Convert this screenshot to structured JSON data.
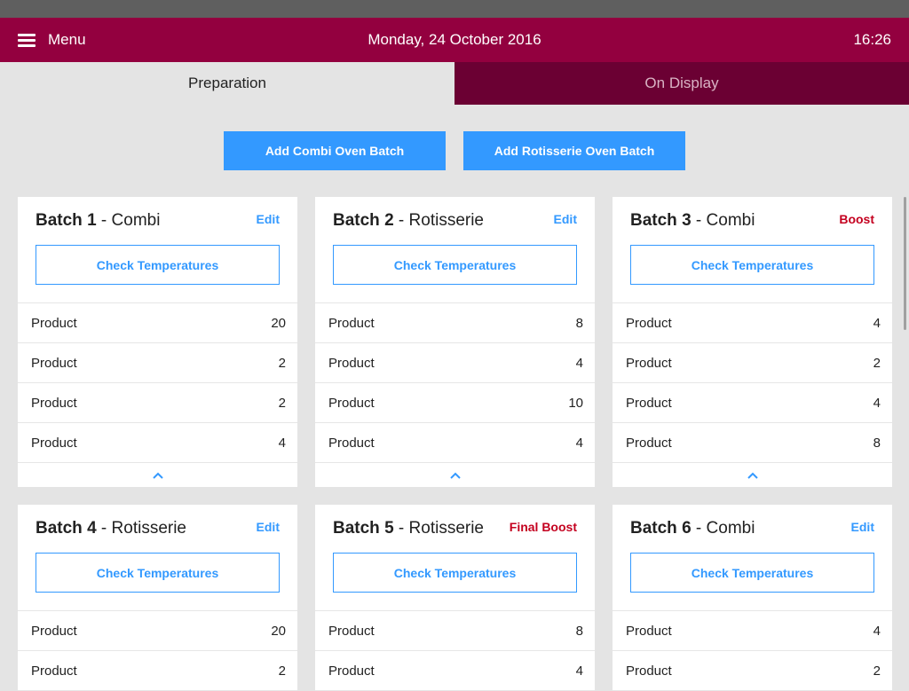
{
  "header": {
    "menu_label": "Menu",
    "date": "Monday, 24 October 2016",
    "time": "16:26"
  },
  "tabs": [
    {
      "label": "Preparation",
      "active": true
    },
    {
      "label": "On Display",
      "active": false
    }
  ],
  "actions": {
    "add_combi": "Add Combi Oven Batch",
    "add_rotisserie": "Add Rotisserie Oven Batch"
  },
  "colors": {
    "header": "#93003f",
    "tab_inactive": "#6b0033",
    "accent": "#3399ff",
    "boost": "#c4001f"
  },
  "check_label": "Check Temperatures",
  "batches": [
    {
      "name": "Batch 1",
      "separator": " - ",
      "oven": "Combi",
      "action": "Edit",
      "action_type": "edit",
      "products": [
        {
          "name": "Product",
          "qty": "20"
        },
        {
          "name": "Product",
          "qty": "2"
        },
        {
          "name": "Product",
          "qty": "2"
        },
        {
          "name": "Product",
          "qty": "4"
        }
      ]
    },
    {
      "name": "Batch 2",
      "separator": " - ",
      "oven": "Rotisserie",
      "action": "Edit",
      "action_type": "edit",
      "products": [
        {
          "name": "Product",
          "qty": "8"
        },
        {
          "name": "Product",
          "qty": "4"
        },
        {
          "name": "Product",
          "qty": "10"
        },
        {
          "name": "Product",
          "qty": "4"
        }
      ]
    },
    {
      "name": "Batch 3",
      "separator": " - ",
      "oven": "Combi",
      "action": "Boost",
      "action_type": "boost",
      "products": [
        {
          "name": "Product",
          "qty": "4"
        },
        {
          "name": "Product",
          "qty": "2"
        },
        {
          "name": "Product",
          "qty": "4"
        },
        {
          "name": "Product",
          "qty": "8"
        }
      ]
    },
    {
      "name": "Batch 4",
      "separator": " - ",
      "oven": "Rotisserie",
      "action": "Edit",
      "action_type": "edit",
      "products": [
        {
          "name": "Product",
          "qty": "20"
        },
        {
          "name": "Product",
          "qty": "2"
        }
      ]
    },
    {
      "name": "Batch 5",
      "separator": " - ",
      "oven": "Rotisserie",
      "action": "Final Boost",
      "action_type": "boost",
      "products": [
        {
          "name": "Product",
          "qty": "8"
        },
        {
          "name": "Product",
          "qty": "4"
        }
      ]
    },
    {
      "name": "Batch 6",
      "separator": " - ",
      "oven": "Combi",
      "action": "Edit",
      "action_type": "edit",
      "products": [
        {
          "name": "Product",
          "qty": "4"
        },
        {
          "name": "Product",
          "qty": "2"
        }
      ]
    }
  ]
}
